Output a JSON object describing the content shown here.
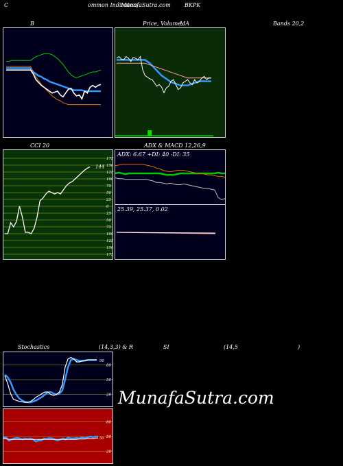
{
  "header": {
    "left": "C",
    "mid": "ommon  Indicators",
    "site": "MunafaSutra.com",
    "symbol": "BKPK"
  },
  "titles": {
    "bb": "B",
    "price": "Price,  Volume,",
    "ma": "MA",
    "bands": "Bands 20,2",
    "cci": "CCI 20",
    "adx": "ADX  & MACD 12,26,9",
    "stoch": "Stochastics",
    "stoch_params": "(14,3,3) & R",
    "rsi": "SI",
    "rsi_params": "(14,5",
    "rsi_close": ")"
  },
  "watermark": "MunafaSutra.com",
  "colors": {
    "navy": "#00001c",
    "dark_green": "#0a2a08",
    "cci_green": "#073406",
    "rsi_red": "#a80000",
    "green": "#00c000",
    "blue": "#3399ff",
    "orange": "#e07000",
    "pink": "#ff9090"
  },
  "chart_data": [
    {
      "type": "line",
      "title": "Bands 20,2",
      "x": [
        0,
        1,
        2,
        3,
        4,
        5,
        6,
        7,
        8,
        9,
        10,
        11,
        12,
        13,
        14,
        15,
        16,
        17,
        18,
        19,
        20,
        21,
        22,
        23,
        24,
        25,
        26,
        27,
        28,
        29,
        30,
        31,
        32,
        33,
        34,
        35
      ],
      "ylim": [
        0,
        100
      ],
      "series": [
        {
          "values": [
            71,
            71,
            72,
            72,
            72,
            72,
            72,
            72,
            72,
            72,
            74,
            76,
            77,
            78,
            79,
            79,
            79,
            78,
            76,
            74,
            71,
            68,
            64,
            60,
            57,
            55,
            54,
            55,
            56,
            57,
            58,
            59,
            60,
            60,
            61,
            62
          ],
          "color": "green"
        },
        {
          "values": [
            64,
            64,
            64,
            64,
            64,
            64,
            64,
            64,
            64,
            64,
            60,
            58,
            56,
            55,
            53,
            52,
            50,
            49,
            48,
            47,
            46,
            45,
            44,
            43,
            42,
            41,
            41,
            41,
            41,
            40,
            40,
            40,
            40,
            40,
            40,
            40
          ],
          "color": "blue"
        },
        {
          "values": [
            66,
            66,
            66,
            66,
            66,
            66,
            66,
            66,
            66,
            66,
            59,
            55,
            51,
            47,
            44,
            41,
            38,
            35,
            33,
            31,
            30,
            28,
            27,
            26,
            26,
            26,
            26,
            26,
            26,
            26,
            26,
            26,
            26,
            26,
            26,
            26
          ],
          "color": "orange"
        },
        {
          "values": [
            62,
            62,
            62,
            62,
            62,
            62,
            62,
            62,
            62,
            62,
            58,
            52,
            49,
            46,
            44,
            42,
            40,
            38,
            39,
            40,
            36,
            34,
            38,
            42,
            43,
            38,
            35,
            36,
            32,
            40,
            38,
            44,
            46,
            44,
            46,
            47
          ],
          "color": "white"
        }
      ]
    },
    {
      "type": "line",
      "title": "Price, Volume, MA",
      "x": [
        0,
        1,
        2,
        3,
        4,
        5,
        6,
        7,
        8,
        9,
        10,
        11,
        12,
        13,
        14,
        15,
        16,
        17,
        18,
        19,
        20,
        21,
        22,
        23,
        24,
        25,
        26,
        27,
        28,
        29,
        30,
        31,
        32,
        33,
        34,
        35,
        36,
        37,
        38,
        39,
        40
      ],
      "ylim": [
        0,
        100
      ],
      "series": [
        {
          "values": [
            68,
            68,
            68,
            68,
            68,
            68,
            68,
            68,
            68,
            68,
            68,
            68,
            68,
            66,
            64,
            61,
            58,
            55,
            52,
            49,
            47,
            45,
            43,
            41,
            40,
            39,
            38,
            37,
            37,
            37,
            37,
            38,
            39,
            40,
            41,
            42,
            42,
            42,
            42,
            42,
            42
          ],
          "color": "blue"
        },
        {
          "values": [
            64,
            64,
            64,
            64,
            64,
            64,
            64,
            64,
            64,
            64,
            64,
            64,
            64,
            63,
            62,
            61,
            60,
            59,
            58,
            57,
            56,
            55,
            54,
            53,
            52,
            51,
            50,
            49,
            48,
            47,
            46,
            46,
            46,
            46,
            46,
            46,
            46,
            46,
            46,
            46,
            46
          ],
          "color": "pink"
        },
        {
          "values": [
            70,
            72,
            69,
            68,
            72,
            70,
            66,
            71,
            70,
            68,
            72,
            56,
            49,
            47,
            45,
            44,
            40,
            36,
            38,
            35,
            28,
            34,
            36,
            42,
            44,
            38,
            32,
            34,
            40,
            42,
            44,
            40,
            38,
            44,
            40,
            42,
            46,
            48,
            44,
            46,
            46
          ],
          "color": "white"
        }
      ],
      "volume": [
        0,
        0,
        0,
        0,
        0,
        0,
        0,
        0,
        0,
        0,
        0,
        0,
        0,
        0,
        9,
        0,
        0,
        0,
        0,
        0,
        0,
        0,
        0,
        0,
        0,
        0,
        0,
        0,
        0,
        0,
        0,
        0,
        0,
        0,
        0,
        0,
        0,
        0,
        0,
        0,
        0
      ]
    },
    {
      "type": "line",
      "title": "CCI 20",
      "ylim": [
        -175,
        175
      ],
      "yticks": [
        175,
        150,
        125,
        100,
        75,
        50,
        25,
        0,
        -25,
        -50,
        -75,
        -100,
        -125,
        -150,
        -175
      ],
      "ytick_labels": [
        "175",
        "150",
        "125",
        "100",
        "75",
        "50",
        "25",
        "0",
        "25",
        "50",
        "75",
        "100",
        "125",
        "150",
        "175"
      ],
      "last_label": "144",
      "x": [
        0,
        1,
        2,
        3,
        4,
        5,
        6,
        7,
        8,
        9,
        10,
        11,
        12,
        13,
        14,
        15,
        16,
        17,
        18,
        19,
        20,
        21,
        22,
        23,
        24,
        25,
        26,
        27,
        28,
        29
      ],
      "series": [
        {
          "values": [
            -100,
            -100,
            -60,
            -75,
            -55,
            0,
            -40,
            -95,
            -95,
            -100,
            -80,
            -40,
            20,
            30,
            45,
            55,
            50,
            45,
            50,
            45,
            60,
            75,
            85,
            90,
            100,
            110,
            120,
            130,
            138,
            144
          ],
          "color": "white"
        }
      ]
    },
    {
      "type": "line",
      "title": "ADX & MACD 12,26,9",
      "adx_label": "ADX: 6.67 +DI: 40 -DI: 35",
      "macd_label": "25.39, 25.37, 0.02",
      "x": [
        0,
        1,
        2,
        3,
        4,
        5,
        6,
        7,
        8,
        9,
        10,
        11,
        12,
        13,
        14,
        15,
        16,
        17,
        18,
        19,
        20,
        21,
        22,
        23,
        24,
        25,
        26,
        27,
        28,
        29,
        30,
        31,
        32
      ],
      "series": [
        {
          "name": "+DI",
          "values": [
            40,
            41,
            40,
            39,
            40,
            40,
            40,
            40,
            40,
            40,
            40,
            40,
            40,
            40,
            39,
            38,
            38,
            38,
            39,
            40,
            40,
            40,
            40,
            40,
            40,
            40,
            40,
            40,
            40,
            40,
            41,
            40,
            40
          ],
          "color": "green"
        },
        {
          "name": "-DI",
          "values": [
            50,
            51,
            52,
            52,
            52,
            52,
            52,
            52,
            52,
            51,
            50,
            49,
            47,
            46,
            44,
            43,
            42,
            43,
            44,
            44,
            44,
            43,
            42,
            41,
            40,
            40,
            39,
            38,
            38,
            37,
            36,
            36,
            35
          ],
          "color": "orange"
        },
        {
          "name": "ADX",
          "values": [
            34,
            33,
            33,
            32,
            32,
            32,
            32,
            32,
            32,
            32,
            31,
            30,
            28,
            28,
            27,
            26,
            27,
            26,
            25,
            25,
            26,
            25,
            24,
            23,
            22,
            21,
            20,
            20,
            19,
            18,
            8,
            5,
            6.67
          ],
          "color": "gray"
        }
      ]
    },
    {
      "type": "line",
      "title": "Stochastics (14,3,3)",
      "ylim": [
        0,
        100
      ],
      "yticks": [
        80,
        50,
        20
      ],
      "last_label": "90",
      "x": [
        0,
        1,
        2,
        3,
        4,
        5,
        6,
        7,
        8,
        9,
        10,
        11,
        12,
        13,
        14,
        15,
        16,
        17,
        18,
        19,
        20,
        21,
        22,
        23,
        24,
        25,
        26,
        27,
        28,
        29,
        30,
        31,
        32
      ],
      "series": [
        {
          "values": [
            60,
            55,
            45,
            30,
            20,
            12,
            8,
            5,
            4,
            4,
            6,
            8,
            12,
            15,
            20,
            24,
            25,
            22,
            20,
            22,
            28,
            50,
            75,
            90,
            92,
            90,
            88,
            88,
            89,
            90,
            90,
            90,
            90
          ],
          "color": "blue"
        },
        {
          "values": [
            58,
            42,
            22,
            10,
            8,
            6,
            5,
            4,
            4,
            6,
            10,
            15,
            18,
            22,
            25,
            25,
            20,
            18,
            20,
            25,
            40,
            75,
            92,
            95,
            92,
            86,
            86,
            88,
            88,
            90,
            90,
            90,
            90
          ],
          "color": "white"
        }
      ]
    },
    {
      "type": "line",
      "title": "RSI (14,5)",
      "ylim": [
        0,
        100
      ],
      "yticks": [
        80,
        50,
        20
      ],
      "last_label": "50",
      "x": [
        0,
        1,
        2,
        3,
        4,
        5,
        6,
        7,
        8,
        9,
        10,
        11,
        12,
        13,
        14,
        15,
        16,
        17,
        18,
        19,
        20,
        21,
        22,
        23,
        24,
        25,
        26,
        27,
        28,
        29,
        30,
        31,
        32,
        33,
        34,
        35
      ],
      "series": [
        {
          "values": [
            48,
            48,
            42,
            44,
            46,
            47,
            46,
            44,
            46,
            45,
            46,
            44,
            40,
            42,
            42,
            46,
            45,
            47,
            46,
            44,
            42,
            44,
            46,
            44,
            48,
            46,
            46,
            47,
            46,
            48,
            47,
            48,
            50,
            49,
            50,
            50
          ],
          "color": "blue"
        },
        {
          "values": [
            46,
            46,
            44,
            44,
            44,
            44,
            44,
            44,
            44,
            44,
            44,
            44,
            44,
            44,
            44,
            44,
            44,
            44,
            44,
            44,
            44,
            44,
            44,
            44,
            44,
            44,
            44,
            44,
            45,
            45,
            45,
            46,
            46,
            46,
            47,
            47
          ],
          "color": "white"
        }
      ]
    }
  ]
}
